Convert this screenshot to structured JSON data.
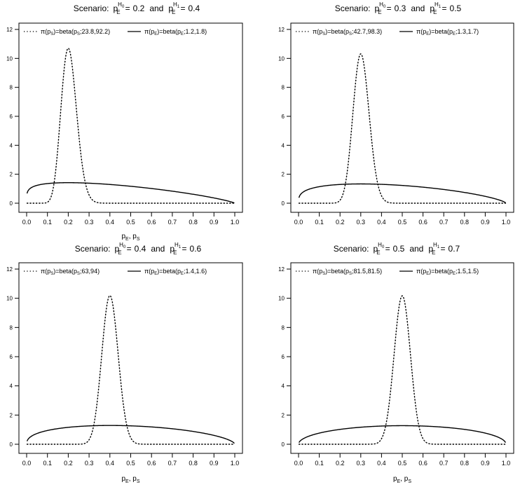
{
  "shared": {
    "scenario_word": "Scenario:",
    "and_word": "and",
    "p_base": "p",
    "e_sub": "E",
    "h0_sup": "H",
    "h0_sup_sub": "0",
    "h1_sup": "H",
    "h1_sup_sub": "1",
    "equals": "=",
    "pi_symbol": "π",
    "xlabel_parts": [
      "p",
      "E",
      ", p",
      "S"
    ],
    "legend_entry_prefix_s": [
      "π(p",
      "S",
      ")=beta(p",
      "S",
      ";"
    ],
    "legend_entry_prefix_e": [
      "π(p",
      "E",
      ")=beta(p",
      "E",
      ";"
    ],
    "legend_entry_suffix": ")"
  },
  "chart_data": [
    {
      "type": "line",
      "title": "Scenario: p_E^H0 = 0.2 and p_E^H1 = 0.4",
      "h0_value": "0.2",
      "h1_value": "0.4",
      "xlabel": "pE, pS",
      "ylabel": "",
      "xlim": [
        0,
        1
      ],
      "ylim": [
        0,
        12
      ],
      "x_ticks": [
        "0.0",
        "0.1",
        "0.2",
        "0.3",
        "0.4",
        "0.5",
        "0.6",
        "0.7",
        "0.8",
        "0.9",
        "1.0"
      ],
      "y_ticks": [
        "0",
        "2",
        "4",
        "6",
        "8",
        "10",
        "12"
      ],
      "legend_position": "top",
      "show_xlabel": true,
      "series": [
        {
          "name": "π(pS)=beta(pS;23.8,92.2)",
          "params_text": "23.8,92.2",
          "alpha": 23.8,
          "beta": 92.2,
          "line_style": "dotted",
          "color": "#000000"
        },
        {
          "name": "π(pE)=beta(pE;1.2,1.8)",
          "params_text": "1.2,1.8",
          "alpha": 1.2,
          "beta": 1.8,
          "line_style": "solid",
          "color": "#000000"
        }
      ]
    },
    {
      "type": "line",
      "title": "Scenario: p_E^H0 = 0.3 and p_E^H1 = 0.5",
      "h0_value": "0.3",
      "h1_value": "0.5",
      "xlabel": "",
      "ylabel": "",
      "xlim": [
        0,
        1
      ],
      "ylim": [
        0,
        12
      ],
      "x_ticks": [
        "0.0",
        "0.1",
        "0.2",
        "0.3",
        "0.4",
        "0.5",
        "0.6",
        "0.7",
        "0.8",
        "0.9",
        "1.0"
      ],
      "y_ticks": [
        "0",
        "2",
        "4",
        "6",
        "8",
        "10",
        "12"
      ],
      "legend_position": "top",
      "show_xlabel": false,
      "series": [
        {
          "name": "π(pS)=beta(pS;42.7,98.3)",
          "params_text": "42.7,98.3",
          "alpha": 42.7,
          "beta": 98.3,
          "line_style": "dotted",
          "color": "#000000"
        },
        {
          "name": "π(pE)=beta(pE;1.3,1.7)",
          "params_text": "1.3,1.7",
          "alpha": 1.3,
          "beta": 1.7,
          "line_style": "solid",
          "color": "#000000"
        }
      ]
    },
    {
      "type": "line",
      "title": "Scenario: p_E^H0 = 0.4 and p_E^H1 = 0.6",
      "h0_value": "0.4",
      "h1_value": "0.6",
      "xlabel": "pE, pS",
      "ylabel": "",
      "xlim": [
        0,
        1
      ],
      "ylim": [
        0,
        12
      ],
      "x_ticks": [
        "0.0",
        "0.1",
        "0.2",
        "0.3",
        "0.4",
        "0.5",
        "0.6",
        "0.7",
        "0.8",
        "0.9",
        "1.0"
      ],
      "y_ticks": [
        "0",
        "2",
        "4",
        "6",
        "8",
        "10",
        "12"
      ],
      "legend_position": "top",
      "show_xlabel": true,
      "series": [
        {
          "name": "π(pS)=beta(pS;63,94)",
          "params_text": "63,94",
          "alpha": 63,
          "beta": 94,
          "line_style": "dotted",
          "color": "#000000"
        },
        {
          "name": "π(pE)=beta(pE;1.4,1.6)",
          "params_text": "1.4,1.6",
          "alpha": 1.4,
          "beta": 1.6,
          "line_style": "solid",
          "color": "#000000"
        }
      ]
    },
    {
      "type": "line",
      "title": "Scenario: p_E^H0 = 0.5 and p_E^H1 = 0.7",
      "h0_value": "0.5",
      "h1_value": "0.7",
      "xlabel": "pE, pS",
      "ylabel": "",
      "xlim": [
        0,
        1
      ],
      "ylim": [
        0,
        12
      ],
      "x_ticks": [
        "0.0",
        "0.1",
        "0.2",
        "0.3",
        "0.4",
        "0.5",
        "0.6",
        "0.7",
        "0.8",
        "0.9",
        "1.0"
      ],
      "y_ticks": [
        "0",
        "2",
        "4",
        "6",
        "8",
        "10",
        "12"
      ],
      "legend_position": "top",
      "show_xlabel": true,
      "series": [
        {
          "name": "π(pS)=beta(pS;81.5,81.5)",
          "params_text": "81.5,81.5",
          "alpha": 81.5,
          "beta": 81.5,
          "line_style": "dotted",
          "color": "#000000"
        },
        {
          "name": "π(pE)=beta(pE;1.5,1.5)",
          "params_text": "1.5,1.5",
          "alpha": 1.5,
          "beta": 1.5,
          "line_style": "solid",
          "color": "#000000"
        }
      ]
    }
  ]
}
